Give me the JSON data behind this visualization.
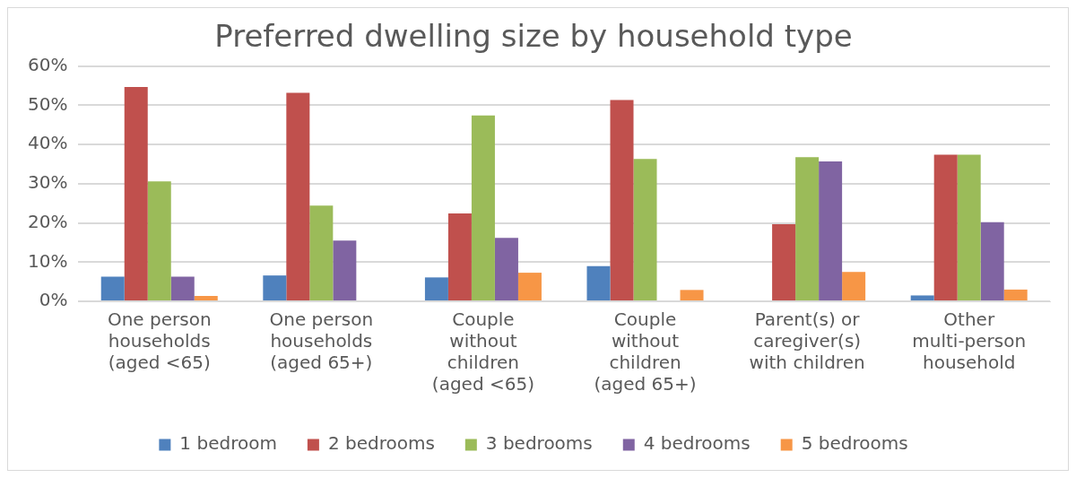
{
  "chart_data": {
    "type": "bar",
    "title": "Preferred dwelling size by household type",
    "categories": [
      "One person households (aged <65)",
      "One person households (aged 65+)",
      "Couple without children (aged <65)",
      "Couple without children (aged 65+)",
      "Parent(s) or caregiver(s) with children",
      "Other multi-person household"
    ],
    "series": [
      {
        "name": "1 bedroom",
        "color": "#4f81bd",
        "values": [
          6.3,
          6.6,
          6.1,
          9.0,
          0,
          1.5
        ]
      },
      {
        "name": "2 bedrooms",
        "color": "#c0504d",
        "values": [
          54.7,
          53.2,
          22.4,
          51.4,
          19.7,
          37.4
        ]
      },
      {
        "name": "3 bedrooms",
        "color": "#9bbb59",
        "values": [
          30.6,
          24.4,
          47.4,
          36.3,
          36.8,
          37.4
        ]
      },
      {
        "name": "4 bedrooms",
        "color": "#8064a2",
        "values": [
          6.3,
          15.5,
          16.2,
          0,
          35.7,
          20.2
        ]
      },
      {
        "name": "5 bedrooms",
        "color": "#f79646",
        "values": [
          1.4,
          0,
          7.3,
          2.9,
          7.5,
          3.0
        ]
      }
    ],
    "ylim": [
      0,
      60
    ],
    "yticks": [
      {
        "value": 0,
        "label": "0%"
      },
      {
        "value": 10,
        "label": "10%"
      },
      {
        "value": 20,
        "label": "20%"
      },
      {
        "value": 30,
        "label": "30%"
      },
      {
        "value": 40,
        "label": "40%"
      },
      {
        "value": 50,
        "label": "50%"
      },
      {
        "value": 60,
        "label": "60%"
      }
    ],
    "grid": "y",
    "legend": "bottom"
  }
}
